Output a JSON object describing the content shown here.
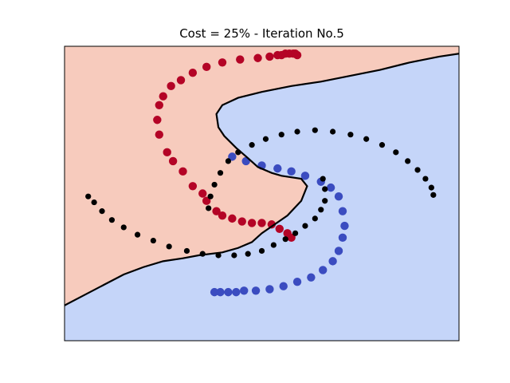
{
  "chart_data": {
    "type": "scatter",
    "title": "Cost = 25% - Iteration No.5",
    "xlabel": "",
    "ylabel": "",
    "axes_ticks_visible": false,
    "xlim": [
      -1.0,
      1.0
    ],
    "ylim": [
      -1.0,
      1.0
    ],
    "grid": false,
    "legend": "none",
    "colors": {
      "region_red": "#f7cbbd",
      "region_blue": "#c5d5f9",
      "class_red": "#b40426",
      "class_blue": "#3b4cc0",
      "misclassified": "#000000",
      "boundary": "#000000"
    },
    "decision_boundary": [
      [
        -1.0,
        -0.76
      ],
      [
        -0.9,
        -0.69
      ],
      [
        -0.8,
        -0.62
      ],
      [
        -0.7,
        -0.55
      ],
      [
        -0.6,
        -0.5
      ],
      [
        -0.5,
        -0.46
      ],
      [
        -0.4,
        -0.44
      ],
      [
        -0.32,
        -0.42
      ],
      [
        -0.2,
        -0.4
      ],
      [
        -0.12,
        -0.37
      ],
      [
        -0.05,
        -0.33
      ],
      [
        0.0,
        -0.27
      ],
      [
        0.13,
        -0.15
      ],
      [
        0.2,
        -0.05
      ],
      [
        0.23,
        0.05
      ],
      [
        0.2,
        0.1
      ],
      [
        0.1,
        0.12
      ],
      [
        0.05,
        0.14
      ],
      [
        -0.02,
        0.18
      ],
      [
        -0.07,
        0.24
      ],
      [
        -0.13,
        0.31
      ],
      [
        -0.19,
        0.39
      ],
      [
        -0.22,
        0.45
      ],
      [
        -0.23,
        0.54
      ],
      [
        -0.2,
        0.6
      ],
      [
        -0.12,
        0.65
      ],
      [
        0.0,
        0.69
      ],
      [
        0.15,
        0.73
      ],
      [
        0.3,
        0.76
      ],
      [
        0.45,
        0.8
      ],
      [
        0.6,
        0.84
      ],
      [
        0.75,
        0.89
      ],
      [
        0.9,
        0.93
      ],
      [
        1.0,
        0.95
      ]
    ],
    "series": [
      {
        "name": "",
        "color": "#b40426",
        "correct_x": [
          0.15,
          0.13,
          0.09,
          0.05,
          0.0,
          -0.05,
          -0.1,
          -0.15,
          -0.2,
          -0.23,
          -0.28,
          -0.3,
          -0.35,
          -0.4,
          -0.45,
          -0.48,
          -0.52,
          -0.53,
          -0.52,
          -0.5,
          -0.46,
          -0.41,
          -0.35,
          -0.28,
          -0.2,
          -0.11,
          -0.02,
          0.04,
          0.08,
          0.1,
          0.12,
          0.14,
          0.16,
          0.17,
          0.18
        ],
        "correct_y": [
          -0.3,
          -0.27,
          -0.24,
          -0.21,
          -0.2,
          -0.2,
          -0.19,
          -0.17,
          -0.15,
          -0.12,
          -0.05,
          0.0,
          0.05,
          0.15,
          0.22,
          0.28,
          0.4,
          0.5,
          0.6,
          0.66,
          0.73,
          0.77,
          0.82,
          0.86,
          0.89,
          0.91,
          0.92,
          0.93,
          0.94,
          0.94,
          0.95,
          0.95,
          0.95,
          0.95,
          0.94
        ]
      },
      {
        "name": "",
        "color": "#3b4cc0",
        "correct_x": [
          -0.15,
          -0.08,
          0.0,
          0.08,
          0.15,
          0.22,
          0.3,
          0.35,
          0.39,
          0.41,
          0.42,
          0.41,
          0.39,
          0.36,
          0.31,
          0.25,
          0.18,
          0.11,
          0.04,
          -0.03,
          -0.09,
          -0.13,
          -0.17,
          -0.21,
          -0.24
        ],
        "correct_y": [
          0.25,
          0.22,
          0.19,
          0.17,
          0.15,
          0.12,
          0.08,
          0.04,
          -0.02,
          -0.12,
          -0.22,
          -0.3,
          -0.39,
          -0.46,
          -0.52,
          -0.57,
          -0.6,
          -0.63,
          -0.65,
          -0.66,
          -0.66,
          -0.67,
          -0.67,
          -0.67,
          -0.67
        ]
      },
      {
        "name": "",
        "color": "#000000",
        "misclassified_x": [
          -0.88,
          -0.85,
          -0.81,
          -0.76,
          -0.7,
          -0.63,
          -0.55,
          -0.47,
          -0.38,
          -0.3,
          -0.22,
          -0.14,
          -0.07,
          0.0,
          0.06,
          0.12,
          0.17,
          0.22,
          0.27,
          0.3,
          0.32,
          0.32,
          0.31
        ],
        "misclassified_y": [
          -0.02,
          -0.06,
          -0.12,
          -0.18,
          -0.23,
          -0.28,
          -0.32,
          -0.36,
          -0.39,
          -0.41,
          -0.42,
          -0.42,
          -0.41,
          -0.39,
          -0.35,
          -0.31,
          -0.27,
          -0.22,
          -0.17,
          -0.11,
          -0.05,
          0.03,
          0.1
        ]
      },
      {
        "name": "",
        "color": "#000000",
        "misclassified_x": [
          -0.27,
          -0.26,
          -0.24,
          -0.21,
          -0.17,
          -0.12,
          -0.05,
          0.02,
          0.1,
          0.18,
          0.27,
          0.36,
          0.45,
          0.53,
          0.61,
          0.68,
          0.74,
          0.79,
          0.83,
          0.86,
          0.87
        ],
        "misclassified_y": [
          -0.1,
          -0.02,
          0.06,
          0.14,
          0.22,
          0.28,
          0.33,
          0.37,
          0.4,
          0.42,
          0.43,
          0.42,
          0.4,
          0.37,
          0.33,
          0.28,
          0.22,
          0.16,
          0.1,
          0.04,
          -0.01
        ]
      }
    ]
  }
}
